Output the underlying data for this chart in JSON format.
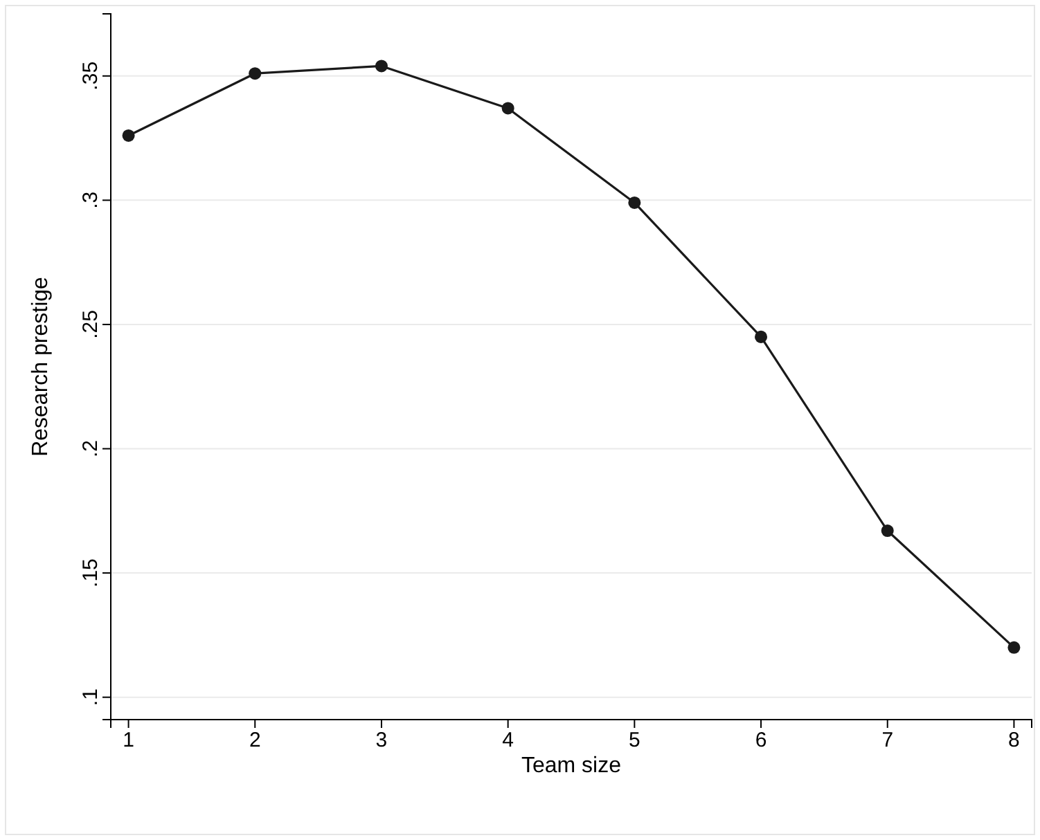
{
  "chart_data": {
    "type": "line",
    "xlabel": "Team size",
    "ylabel": "Research prestige",
    "x": [
      1,
      2,
      3,
      4,
      5,
      6,
      7,
      8
    ],
    "series": [
      {
        "color": "#1a1a1a",
        "values": [
          0.326,
          0.351,
          0.354,
          0.337,
          0.299,
          0.245,
          0.167,
          0.12
        ]
      }
    ],
    "xlim": [
      0.86,
      8.14
    ],
    "xticks": [
      1,
      2,
      3,
      4,
      5,
      6,
      7,
      8
    ],
    "ylim": [
      0.091,
      0.375
    ],
    "yticks": [
      {
        "value": 0.1,
        "label": ".1"
      },
      {
        "value": 0.15,
        "label": ".15"
      },
      {
        "value": 0.2,
        "label": ".2"
      },
      {
        "value": 0.25,
        "label": ".25"
      },
      {
        "value": 0.3,
        "label": ".3"
      },
      {
        "value": 0.35,
        "label": ".35"
      }
    ],
    "grid": "y",
    "marker": "circle",
    "line_style": "solid"
  }
}
